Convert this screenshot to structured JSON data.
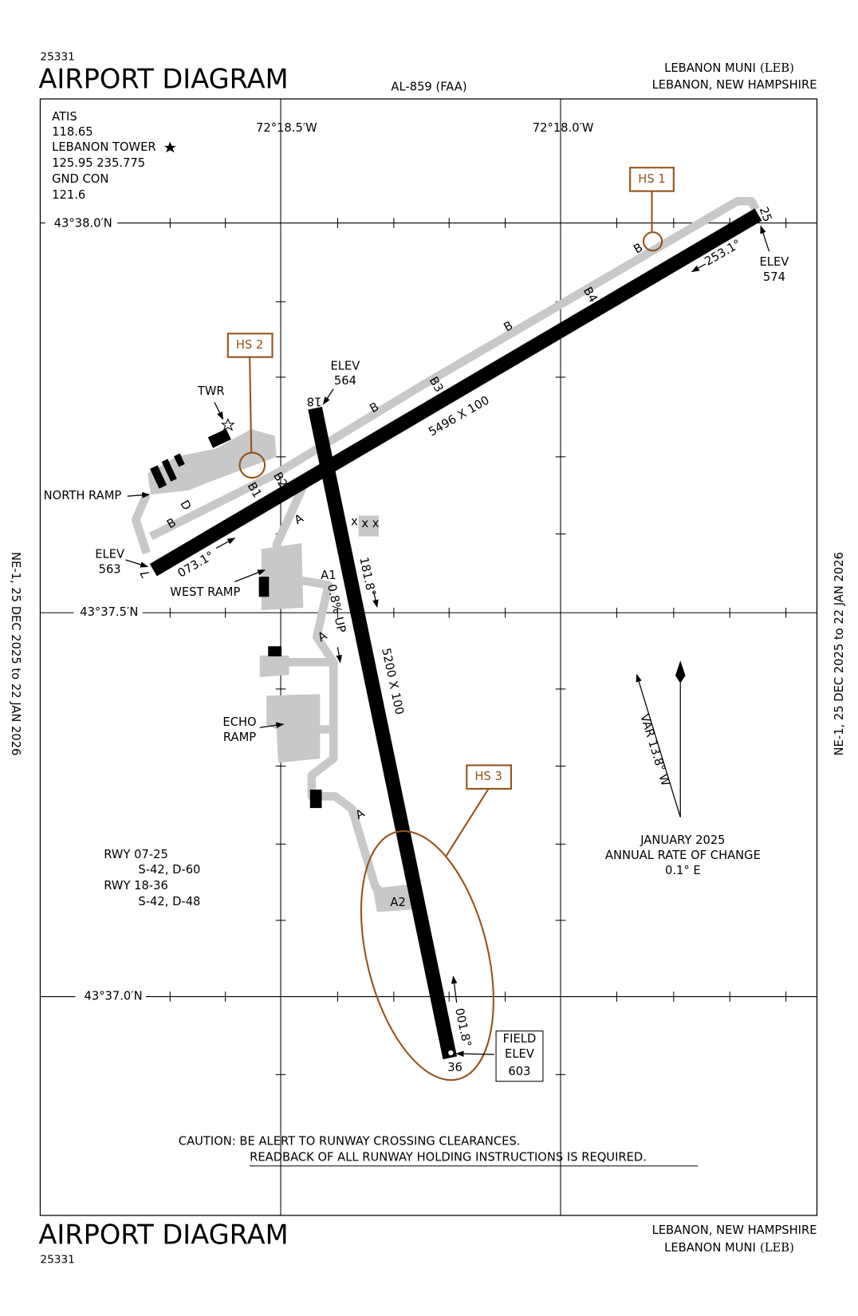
{
  "header": {
    "chart_id": "25331",
    "title": "AIRPORT DIAGRAM",
    "procedure": "AL-859 (FAA)",
    "airport": "LEBANON MUNI",
    "ident": "(LEB)",
    "city": "LEBANON, NEW HAMPSHIRE"
  },
  "footer": {
    "title": "AIRPORT DIAGRAM",
    "chart_id": "25331",
    "city": "LEBANON, NEW HAMPSHIRE",
    "airport": "LEBANON MUNI",
    "ident": "(LEB)"
  },
  "effective_dates": {
    "left": "NE-1,  25 DEC 2025  to  22 JAN 2026",
    "right": "NE-1,  25 DEC 2025  to  22 JAN 2026"
  },
  "communications": [
    "ATIS",
    "118.65",
    "LEBANON TOWER",
    "125.95  235.775",
    "GND CON",
    "121.6"
  ],
  "longitudes": [
    "72°18.5′W",
    "72°18.0′W"
  ],
  "latitudes": [
    "43°38.0′N",
    "43°37.5′N",
    "43°37.0′N"
  ],
  "runways": [
    {
      "ends": [
        "7",
        "25"
      ],
      "size": "5496 X 100",
      "headings": [
        "073.1°",
        "253.1°"
      ],
      "elevations": [
        {
          "label": "ELEV",
          "value": "563"
        },
        {
          "label": "ELEV",
          "value": "574"
        }
      ]
    },
    {
      "ends": [
        "18",
        "36"
      ],
      "size": "5200 X 100",
      "headings": [
        "181.8°",
        "001.8°"
      ],
      "gradient": "0.8% UP",
      "elevations": [
        {
          "label": "ELEV",
          "value": "564"
        }
      ]
    }
  ],
  "taxiway_labels": [
    "B",
    "B4",
    "B",
    "B3",
    "B",
    "B2",
    "B1",
    "D",
    "B",
    "A",
    "A1",
    "A",
    "A",
    "A2"
  ],
  "closed_marks": [
    "x x",
    "x"
  ],
  "north_ramp": "NORTH RAMP",
  "west_ramp": "WEST RAMP",
  "echo_ramp": [
    "ECHO",
    "RAMP"
  ],
  "tower": "TWR",
  "hot_spots": [
    "HS 1",
    "HS 2",
    "HS 3"
  ],
  "field_elevation": {
    "label": [
      "FIELD",
      "ELEV"
    ],
    "value": "603"
  },
  "runway_strength": [
    "RWY 07-25",
    "S-42, D-60",
    "RWY 18-36",
    "S-42, D-48"
  ],
  "magnetic": {
    "variation": "VAR 13.8° W",
    "date": "JANUARY 2025",
    "rate_label": "ANNUAL RATE OF CHANGE",
    "rate": "0.1° E"
  },
  "caution": [
    "CAUTION: BE ALERT TO RUNWAY CROSSING CLEARANCES.",
    "READBACK OF ALL RUNWAY HOLDING INSTRUCTIONS IS REQUIRED."
  ]
}
